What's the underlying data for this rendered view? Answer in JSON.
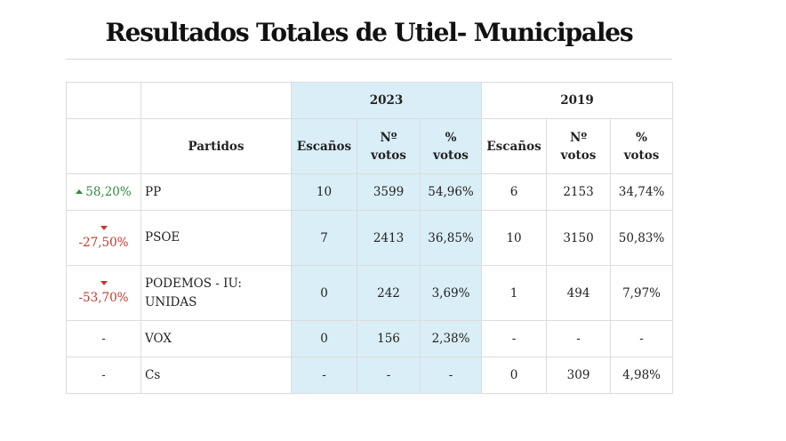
{
  "title": "Resultados Totales de Utiel- Municipales",
  "colors": {
    "highlight_2023": "#d9eef7",
    "up": "#2e8b3e",
    "down": "#c0392b"
  },
  "years": {
    "current": "2023",
    "previous": "2019"
  },
  "headers": {
    "partidos": "Partidos",
    "escanos": "Escaños",
    "votos_line1": "Nº",
    "votos_line2": "votos",
    "pct_line1": "%",
    "pct_line2": "votos"
  },
  "rows": [
    {
      "change": "58,20%",
      "direction": "up",
      "party": "PP",
      "e2023": "10",
      "v2023": "3599",
      "p2023": "54,96%",
      "e2019": "6",
      "v2019": "2153",
      "p2019": "34,74%"
    },
    {
      "change": "-27,50%",
      "direction": "down",
      "party": "PSOE",
      "e2023": "7",
      "v2023": "2413",
      "p2023": "36,85%",
      "e2019": "10",
      "v2019": "3150",
      "p2019": "50,83%"
    },
    {
      "change": "-53,70%",
      "direction": "down",
      "party_line1": "PODEMOS - IU:",
      "party_line2": "UNIDAS",
      "e2023": "0",
      "v2023": "242",
      "p2023": "3,69%",
      "e2019": "1",
      "v2019": "494",
      "p2019": "7,97%"
    },
    {
      "change": "-",
      "direction": "none",
      "party": "VOX",
      "e2023": "0",
      "v2023": "156",
      "p2023": "2,38%",
      "e2019": "-",
      "v2019": "-",
      "p2019": "-"
    },
    {
      "change": "-",
      "direction": "none",
      "party": "Cs",
      "e2023": "-",
      "v2023": "-",
      "p2023": "-",
      "e2019": "0",
      "v2019": "309",
      "p2019": "4,98%"
    }
  ]
}
